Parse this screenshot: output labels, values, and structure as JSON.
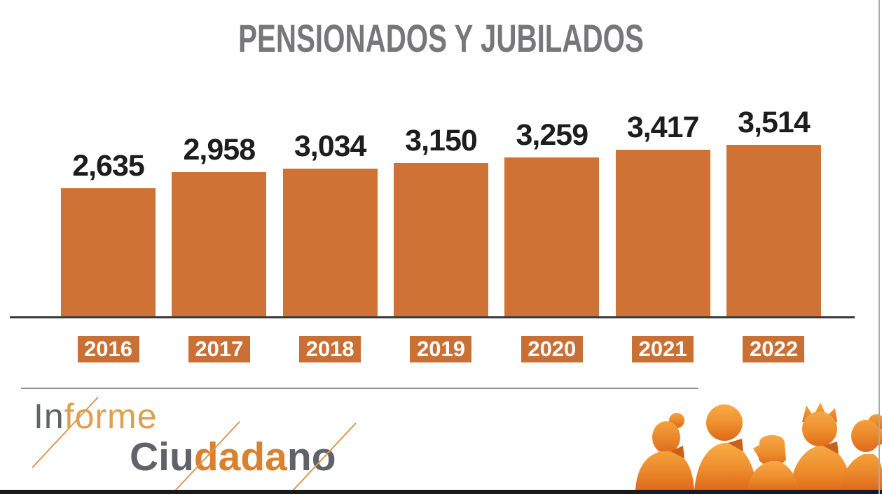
{
  "chart_data": {
    "type": "bar",
    "title": "PENSIONADOS Y JUBILADOS",
    "categories": [
      "2016",
      "2017",
      "2018",
      "2019",
      "2020",
      "2021",
      "2022"
    ],
    "values": [
      2635,
      2958,
      3034,
      3150,
      3259,
      3417,
      3514
    ],
    "value_labels": [
      "2,635",
      "2,958",
      "3,034",
      "3,150",
      "3,259",
      "3,417",
      "3,514"
    ],
    "xlabel": "",
    "ylabel": "",
    "ylim": [
      0,
      3600
    ],
    "grid": false,
    "legend": false,
    "bar_color": "#CE7335",
    "year_box_color": "#CB7034",
    "year_text_color": "#ffffff",
    "value_label_color": "#1d1d1d",
    "title_color": "#77777a",
    "axis_line_color": "#3a3a3e"
  },
  "logo": {
    "word1_prefix": "In",
    "word1_accent": "forme",
    "word2_prefix": "Ciu",
    "word2_accent": "dada",
    "word2_suffix": "no",
    "gray": "#606269",
    "amber": "#dfa04c",
    "orange": "#d8812e"
  },
  "decor": {
    "people_icon": "people-silhouettes",
    "separator_color": "#8f9093"
  }
}
